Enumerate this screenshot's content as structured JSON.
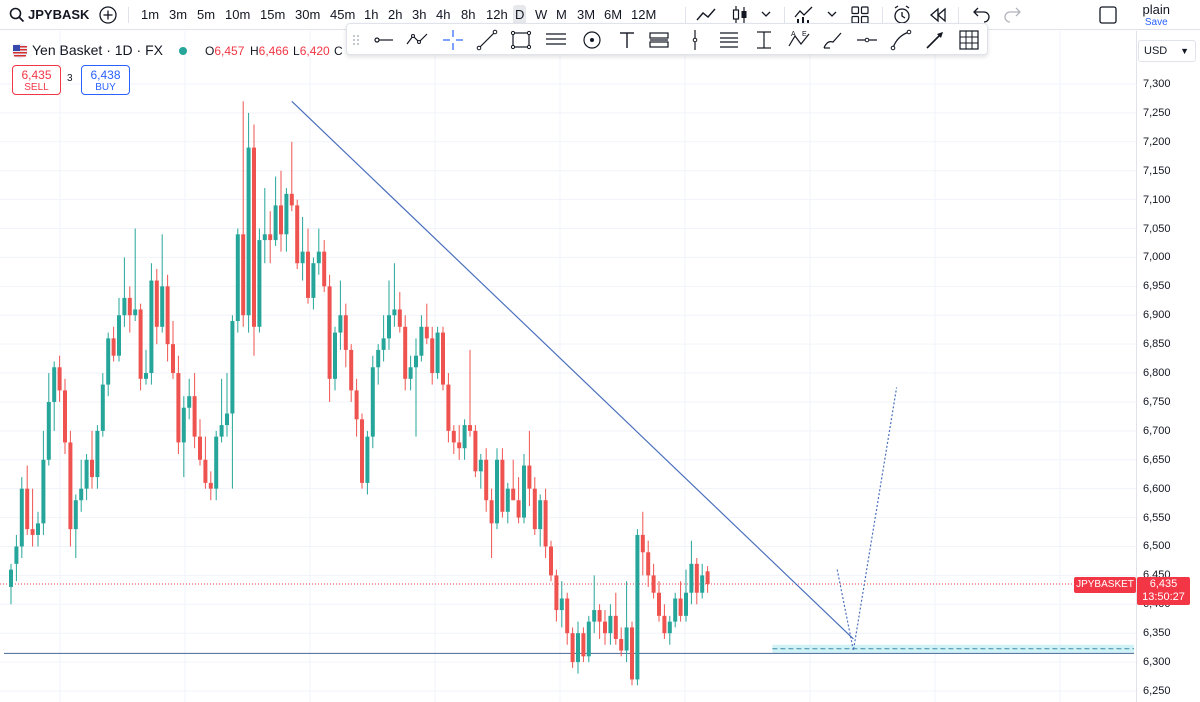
{
  "toolbar": {
    "symbol": "JPYBASK",
    "timeframes": [
      "1m",
      "3m",
      "5m",
      "10m",
      "15m",
      "30m",
      "45m",
      "1h",
      "2h",
      "3h",
      "4h",
      "8h",
      "12h",
      "D",
      "W",
      "M",
      "3M",
      "6M",
      "12M"
    ],
    "active_timeframe": "D",
    "layout_name": "plain",
    "save_label": "Save"
  },
  "legend": {
    "title": "Yen Basket · 1D · FX",
    "open_key": "O",
    "open": "6,457",
    "high_key": "H",
    "high": "6,466",
    "low_key": "L",
    "low": "6,420",
    "close_key": "C"
  },
  "trade": {
    "sell_price": "6,435",
    "sell_label": "SELL",
    "spread": "3",
    "buy_price": "6,438",
    "buy_label": "BUY"
  },
  "scale": {
    "currency": "USD",
    "ticks": [
      "7,300",
      "7,250",
      "7,200",
      "7,150",
      "7,100",
      "7,050",
      "7,000",
      "6,950",
      "6,900",
      "6,850",
      "6,800",
      "6,750",
      "6,700",
      "6,650",
      "6,600",
      "6,550",
      "6,500",
      "6,450",
      "6,400",
      "6,350",
      "6,300",
      "6,250"
    ]
  },
  "price_label": {
    "symbol": "JPYBASKET",
    "price": "6,435",
    "countdown": "13:50:27"
  },
  "colors": {
    "up": "#26a69a",
    "down": "#ef5350",
    "trendline": "#4a6fbd",
    "support_line": "#5b7aa3",
    "zone": "#b2ebf2",
    "accent": "#2962ff",
    "price_line": "#f23645"
  },
  "chart_data": {
    "type": "candlestick",
    "symbol": "JPYBASKET",
    "timeframe": "1D",
    "ylim": [
      6240,
      7320
    ],
    "grid": true,
    "current_price": 6435,
    "candles": [
      {
        "o": 6430,
        "h": 6470,
        "l": 6400,
        "c": 6460
      },
      {
        "o": 6470,
        "h": 6520,
        "l": 6440,
        "c": 6500
      },
      {
        "o": 6500,
        "h": 6620,
        "l": 6480,
        "c": 6600
      },
      {
        "o": 6600,
        "h": 6640,
        "l": 6520,
        "c": 6530
      },
      {
        "o": 6530,
        "h": 6600,
        "l": 6500,
        "c": 6520
      },
      {
        "o": 6520,
        "h": 6560,
        "l": 6500,
        "c": 6540
      },
      {
        "o": 6540,
        "h": 6700,
        "l": 6520,
        "c": 6650
      },
      {
        "o": 6650,
        "h": 6800,
        "l": 6640,
        "c": 6750
      },
      {
        "o": 6750,
        "h": 6820,
        "l": 6700,
        "c": 6810
      },
      {
        "o": 6810,
        "h": 6830,
        "l": 6750,
        "c": 6770
      },
      {
        "o": 6770,
        "h": 6790,
        "l": 6660,
        "c": 6680
      },
      {
        "o": 6680,
        "h": 6700,
        "l": 6500,
        "c": 6530
      },
      {
        "o": 6530,
        "h": 6590,
        "l": 6480,
        "c": 6580
      },
      {
        "o": 6580,
        "h": 6650,
        "l": 6560,
        "c": 6600
      },
      {
        "o": 6600,
        "h": 6660,
        "l": 6580,
        "c": 6650
      },
      {
        "o": 6650,
        "h": 6700,
        "l": 6600,
        "c": 6620
      },
      {
        "o": 6620,
        "h": 6710,
        "l": 6600,
        "c": 6700
      },
      {
        "o": 6700,
        "h": 6800,
        "l": 6690,
        "c": 6780
      },
      {
        "o": 6780,
        "h": 6870,
        "l": 6760,
        "c": 6860
      },
      {
        "o": 6860,
        "h": 6880,
        "l": 6820,
        "c": 6830
      },
      {
        "o": 6830,
        "h": 6930,
        "l": 6820,
        "c": 6900
      },
      {
        "o": 6900,
        "h": 7000,
        "l": 6880,
        "c": 6930
      },
      {
        "o": 6930,
        "h": 6950,
        "l": 6870,
        "c": 6900
      },
      {
        "o": 6900,
        "h": 7050,
        "l": 6890,
        "c": 6910
      },
      {
        "o": 6910,
        "h": 6920,
        "l": 6770,
        "c": 6790
      },
      {
        "o": 6790,
        "h": 6840,
        "l": 6780,
        "c": 6800
      },
      {
        "o": 6800,
        "h": 6990,
        "l": 6780,
        "c": 6960
      },
      {
        "o": 6960,
        "h": 6980,
        "l": 6850,
        "c": 6880
      },
      {
        "o": 6880,
        "h": 7040,
        "l": 6870,
        "c": 6950
      },
      {
        "o": 6950,
        "h": 6970,
        "l": 6820,
        "c": 6850
      },
      {
        "o": 6850,
        "h": 6890,
        "l": 6790,
        "c": 6800
      },
      {
        "o": 6800,
        "h": 6830,
        "l": 6660,
        "c": 6680
      },
      {
        "o": 6680,
        "h": 6760,
        "l": 6620,
        "c": 6740
      },
      {
        "o": 6740,
        "h": 6790,
        "l": 6720,
        "c": 6760
      },
      {
        "o": 6760,
        "h": 6800,
        "l": 6670,
        "c": 6690
      },
      {
        "o": 6690,
        "h": 6720,
        "l": 6640,
        "c": 6650
      },
      {
        "o": 6650,
        "h": 6690,
        "l": 6600,
        "c": 6610
      },
      {
        "o": 6610,
        "h": 6630,
        "l": 6580,
        "c": 6600
      },
      {
        "o": 6600,
        "h": 6700,
        "l": 6580,
        "c": 6690
      },
      {
        "o": 6690,
        "h": 6790,
        "l": 6680,
        "c": 6710
      },
      {
        "o": 6710,
        "h": 6800,
        "l": 6690,
        "c": 6730
      },
      {
        "o": 6730,
        "h": 6900,
        "l": 6600,
        "c": 6890
      },
      {
        "o": 6890,
        "h": 7050,
        "l": 6870,
        "c": 7040
      },
      {
        "o": 7040,
        "h": 7270,
        "l": 6880,
        "c": 6900
      },
      {
        "o": 6900,
        "h": 7250,
        "l": 6870,
        "c": 7190
      },
      {
        "o": 7190,
        "h": 7230,
        "l": 6830,
        "c": 6880
      },
      {
        "o": 6880,
        "h": 7050,
        "l": 6870,
        "c": 7030
      },
      {
        "o": 7030,
        "h": 7120,
        "l": 6990,
        "c": 7040
      },
      {
        "o": 7040,
        "h": 7080,
        "l": 6990,
        "c": 7030
      },
      {
        "o": 7030,
        "h": 7140,
        "l": 7020,
        "c": 7090
      },
      {
        "o": 7090,
        "h": 7150,
        "l": 7010,
        "c": 7040
      },
      {
        "o": 7040,
        "h": 7120,
        "l": 7010,
        "c": 7110
      },
      {
        "o": 7110,
        "h": 7200,
        "l": 7080,
        "c": 7090
      },
      {
        "o": 7090,
        "h": 7100,
        "l": 6980,
        "c": 6990
      },
      {
        "o": 6990,
        "h": 7070,
        "l": 6960,
        "c": 7010
      },
      {
        "o": 7010,
        "h": 7050,
        "l": 6920,
        "c": 6930
      },
      {
        "o": 6930,
        "h": 7000,
        "l": 6910,
        "c": 6990
      },
      {
        "o": 6990,
        "h": 7050,
        "l": 6970,
        "c": 7010
      },
      {
        "o": 7010,
        "h": 7030,
        "l": 6940,
        "c": 6950
      },
      {
        "o": 6950,
        "h": 6970,
        "l": 6750,
        "c": 6790
      },
      {
        "o": 6790,
        "h": 6880,
        "l": 6770,
        "c": 6870
      },
      {
        "o": 6870,
        "h": 6960,
        "l": 6840,
        "c": 6900
      },
      {
        "o": 6900,
        "h": 6920,
        "l": 6810,
        "c": 6840
      },
      {
        "o": 6840,
        "h": 6850,
        "l": 6750,
        "c": 6770
      },
      {
        "o": 6770,
        "h": 6790,
        "l": 6690,
        "c": 6720
      },
      {
        "o": 6720,
        "h": 6730,
        "l": 6600,
        "c": 6610
      },
      {
        "o": 6610,
        "h": 6700,
        "l": 6590,
        "c": 6690
      },
      {
        "o": 6690,
        "h": 6830,
        "l": 6670,
        "c": 6810
      },
      {
        "o": 6810,
        "h": 6850,
        "l": 6780,
        "c": 6840
      },
      {
        "o": 6840,
        "h": 6900,
        "l": 6820,
        "c": 6860
      },
      {
        "o": 6860,
        "h": 6960,
        "l": 6840,
        "c": 6900
      },
      {
        "o": 6900,
        "h": 6990,
        "l": 6880,
        "c": 6910
      },
      {
        "o": 6910,
        "h": 6940,
        "l": 6870,
        "c": 6880
      },
      {
        "o": 6880,
        "h": 6900,
        "l": 6770,
        "c": 6790
      },
      {
        "o": 6790,
        "h": 6830,
        "l": 6770,
        "c": 6810
      },
      {
        "o": 6810,
        "h": 6860,
        "l": 6690,
        "c": 6830
      },
      {
        "o": 6830,
        "h": 6900,
        "l": 6820,
        "c": 6880
      },
      {
        "o": 6880,
        "h": 6920,
        "l": 6850,
        "c": 6860
      },
      {
        "o": 6860,
        "h": 6880,
        "l": 6780,
        "c": 6800
      },
      {
        "o": 6800,
        "h": 6880,
        "l": 6790,
        "c": 6870
      },
      {
        "o": 6870,
        "h": 6880,
        "l": 6770,
        "c": 6780
      },
      {
        "o": 6780,
        "h": 6800,
        "l": 6680,
        "c": 6700
      },
      {
        "o": 6700,
        "h": 6710,
        "l": 6660,
        "c": 6680
      },
      {
        "o": 6680,
        "h": 6710,
        "l": 6650,
        "c": 6670
      },
      {
        "o": 6670,
        "h": 6720,
        "l": 6650,
        "c": 6710
      },
      {
        "o": 6710,
        "h": 6840,
        "l": 6690,
        "c": 6700
      },
      {
        "o": 6700,
        "h": 6710,
        "l": 6620,
        "c": 6630
      },
      {
        "o": 6630,
        "h": 6660,
        "l": 6600,
        "c": 6650
      },
      {
        "o": 6650,
        "h": 6670,
        "l": 6560,
        "c": 6580
      },
      {
        "o": 6580,
        "h": 6600,
        "l": 6480,
        "c": 6540
      },
      {
        "o": 6540,
        "h": 6670,
        "l": 6530,
        "c": 6650
      },
      {
        "o": 6650,
        "h": 6670,
        "l": 6550,
        "c": 6560
      },
      {
        "o": 6560,
        "h": 6610,
        "l": 6540,
        "c": 6600
      },
      {
        "o": 6600,
        "h": 6650,
        "l": 6580,
        "c": 6580
      },
      {
        "o": 6580,
        "h": 6620,
        "l": 6540,
        "c": 6550
      },
      {
        "o": 6550,
        "h": 6660,
        "l": 6540,
        "c": 6640
      },
      {
        "o": 6640,
        "h": 6700,
        "l": 6570,
        "c": 6600
      },
      {
        "o": 6600,
        "h": 6620,
        "l": 6520,
        "c": 6530
      },
      {
        "o": 6530,
        "h": 6590,
        "l": 6500,
        "c": 6580
      },
      {
        "o": 6580,
        "h": 6600,
        "l": 6480,
        "c": 6500
      },
      {
        "o": 6500,
        "h": 6510,
        "l": 6440,
        "c": 6450
      },
      {
        "o": 6450,
        "h": 6460,
        "l": 6370,
        "c": 6390
      },
      {
        "o": 6390,
        "h": 6440,
        "l": 6360,
        "c": 6410
      },
      {
        "o": 6410,
        "h": 6420,
        "l": 6330,
        "c": 6350
      },
      {
        "o": 6350,
        "h": 6360,
        "l": 6290,
        "c": 6300
      },
      {
        "o": 6300,
        "h": 6370,
        "l": 6280,
        "c": 6350
      },
      {
        "o": 6350,
        "h": 6360,
        "l": 6300,
        "c": 6310
      },
      {
        "o": 6310,
        "h": 6380,
        "l": 6300,
        "c": 6370
      },
      {
        "o": 6370,
        "h": 6450,
        "l": 6350,
        "c": 6390
      },
      {
        "o": 6390,
        "h": 6400,
        "l": 6340,
        "c": 6370
      },
      {
        "o": 6370,
        "h": 6390,
        "l": 6330,
        "c": 6350
      },
      {
        "o": 6350,
        "h": 6400,
        "l": 6330,
        "c": 6380
      },
      {
        "o": 6380,
        "h": 6420,
        "l": 6330,
        "c": 6340
      },
      {
        "o": 6340,
        "h": 6360,
        "l": 6310,
        "c": 6320
      },
      {
        "o": 6320,
        "h": 6440,
        "l": 6300,
        "c": 6360
      },
      {
        "o": 6360,
        "h": 6370,
        "l": 6260,
        "c": 6270
      },
      {
        "o": 6270,
        "h": 6530,
        "l": 6260,
        "c": 6520
      },
      {
        "o": 6520,
        "h": 6560,
        "l": 6450,
        "c": 6490
      },
      {
        "o": 6490,
        "h": 6510,
        "l": 6430,
        "c": 6450
      },
      {
        "o": 6450,
        "h": 6470,
        "l": 6410,
        "c": 6420
      },
      {
        "o": 6420,
        "h": 6440,
        "l": 6370,
        "c": 6380
      },
      {
        "o": 6380,
        "h": 6400,
        "l": 6340,
        "c": 6350
      },
      {
        "o": 6350,
        "h": 6380,
        "l": 6330,
        "c": 6370
      },
      {
        "o": 6370,
        "h": 6420,
        "l": 6360,
        "c": 6410
      },
      {
        "o": 6410,
        "h": 6440,
        "l": 6370,
        "c": 6380
      },
      {
        "o": 6380,
        "h": 6460,
        "l": 6370,
        "c": 6420
      },
      {
        "o": 6420,
        "h": 6510,
        "l": 6400,
        "c": 6470
      },
      {
        "o": 6470,
        "h": 6480,
        "l": 6400,
        "c": 6420
      },
      {
        "o": 6420,
        "h": 6470,
        "l": 6410,
        "c": 6450
      },
      {
        "o": 6457,
        "h": 6466,
        "l": 6420,
        "c": 6435
      }
    ],
    "drawings": {
      "trendline": {
        "start": {
          "bar": 52,
          "price": 7270
        },
        "end": {
          "bar": 156,
          "price": 6340
        }
      },
      "support_level": 6315,
      "zone": [
        6316,
        6330
      ],
      "projection": [
        {
          "bar": 153,
          "price": 6460
        },
        {
          "bar": 156,
          "price": 6320
        },
        {
          "bar": 164,
          "price": 6775
        }
      ]
    }
  }
}
